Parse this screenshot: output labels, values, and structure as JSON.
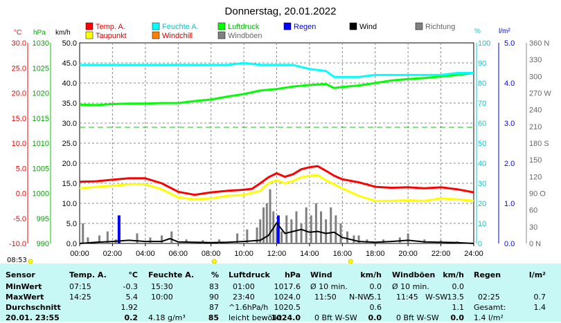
{
  "title": "Donnerstag, 20.01.2022",
  "legend": [
    {
      "label": "Temp. A.",
      "color": "#ff0000"
    },
    {
      "label": "Feuchte A.",
      "color": "#00ffff"
    },
    {
      "label": "Luftdruck",
      "color": "#00ff00"
    },
    {
      "label": "Regen",
      "color": "#0000ff"
    },
    {
      "label": "Wind",
      "color": "#000000"
    },
    {
      "label": "Richtung",
      "color": "#808080"
    },
    {
      "label": "Taupunkt",
      "color": "#ffff00"
    },
    {
      "label": "Windchill",
      "color": "#ff8000"
    },
    {
      "label": "Windböen",
      "color": "#808080"
    }
  ],
  "axis_units": {
    "temp": "°C",
    "pressure": "hPa",
    "wind": "km/h",
    "humidity": "%",
    "rain": "l/m²"
  },
  "current_time": "08:53",
  "summary": {
    "labels": {
      "sensor": "Sensor",
      "min": "MinWert",
      "max": "MaxWert",
      "avg": "Durchschnitt",
      "last": "20.01. 23:55"
    },
    "temp": {
      "header": "Temp. A.",
      "unit": "°C",
      "min_time": "07:15",
      "min": "-0.3",
      "max_time": "14:25",
      "max": "5.4",
      "avg": "1.92",
      "last": "0.2"
    },
    "humidity": {
      "header": "Feuchte A.",
      "unit": "%",
      "min_time": "15:30",
      "min": "83",
      "max_time": "10:00",
      "max": "90",
      "avg": "87",
      "last_extra": "4.18 g/m³",
      "last": "85"
    },
    "pressure": {
      "header": "Luftdruck",
      "unit": "hPa",
      "min_time": "01:00",
      "min": "1017.6",
      "max_time": "23:40",
      "max": "1024.0",
      "avg_extra": "^1.6hPa/h",
      "avg": "1020.5",
      "last_extra": "leicht bewölkt",
      "last": "1024.0"
    },
    "wind": {
      "header": "Wind",
      "unit": "km/h",
      "min_time": "Ø 10 min.",
      "min": "0.0",
      "max_time": "11:50",
      "max_dir": "N-NW",
      "max": "5.1",
      "avg": "0.6",
      "last_extra": "0 Bft W-SW",
      "last": "0.0"
    },
    "gusts": {
      "header": "Windböen",
      "unit": "km/h",
      "min_time": "Ø 10 min.",
      "min": "0.0",
      "max_time": "11:45",
      "max_dir": "W-SW",
      "max": "13.5",
      "avg": "1.1",
      "last_extra": "0 Bft W-SW",
      "last": "0.0"
    },
    "rain": {
      "header": "Regen",
      "unit": "l/m²",
      "max_time": "02:25",
      "max": "0.7",
      "avg_label": "Gesamt:",
      "avg": "1.4",
      "last": "1.4 l/m²"
    }
  },
  "chart_data": {
    "type": "line",
    "title": "Donnerstag, 20.01.2022",
    "x_ticks": [
      "00:00",
      "02:00",
      "04:00",
      "06:00",
      "08:00",
      "10:00",
      "12:00",
      "14:00",
      "16:00",
      "18:00",
      "20:00",
      "22:00",
      "24:00"
    ],
    "x_range_hours": [
      0,
      24
    ],
    "y_axes": {
      "temp_c": {
        "range": [
          -10,
          30
        ],
        "ticks": [
          "-10.0",
          "-5.0",
          "0.0",
          "5.0",
          "10.0",
          "15.0",
          "20.0",
          "25.0",
          "30.0"
        ],
        "color": "#ff0000"
      },
      "pressure_hpa": {
        "range": [
          990,
          1030
        ],
        "ticks": [
          "990",
          "995",
          "1000",
          "1005",
          "1010",
          "1015",
          "1020",
          "1025",
          "1030"
        ],
        "color": "#00cc00"
      },
      "wind_kmh": {
        "range": [
          0,
          50
        ],
        "ticks": [
          "0.0",
          "5.0",
          "10.0",
          "15.0",
          "20.0",
          "25.0",
          "30.0",
          "35.0",
          "40.0",
          "45.0",
          "50.0"
        ],
        "color": "#000000"
      },
      "humidity_pct": {
        "range": [
          0,
          100
        ],
        "ticks": [
          "0",
          "10",
          "20",
          "30",
          "40",
          "50",
          "60",
          "70",
          "80",
          "90",
          "100"
        ],
        "color": "#00cccc"
      },
      "rain_lm2": {
        "range": [
          0,
          5
        ],
        "ticks": [
          "0.0",
          "1.0",
          "2.0",
          "3.0",
          "4.0",
          "5.0"
        ],
        "color": "#0000ff"
      },
      "direction_deg": {
        "range": [
          0,
          360
        ],
        "ticks": [
          "0",
          "30",
          "60",
          "90",
          "120",
          "150",
          "180",
          "210",
          "240",
          "270",
          "300",
          "330",
          "360"
        ],
        "labels": {
          "0": "N",
          "90": "O",
          "180": "S",
          "270": "W",
          "360": "N"
        }
      }
    },
    "grid": true,
    "series": [
      {
        "name": "Temp. A.",
        "axis": "temp_c",
        "color": "#ff0000",
        "points": [
          [
            0,
            2.3
          ],
          [
            1,
            2.4
          ],
          [
            2,
            2.7
          ],
          [
            3,
            3.0
          ],
          [
            4,
            3.0
          ],
          [
            5,
            2.0
          ],
          [
            6,
            0.3
          ],
          [
            7,
            -0.3
          ],
          [
            8,
            0.2
          ],
          [
            9,
            0.5
          ],
          [
            10,
            0.7
          ],
          [
            10.5,
            0.9
          ],
          [
            11,
            2.0
          ],
          [
            11.5,
            3.2
          ],
          [
            12,
            4.0
          ],
          [
            12.5,
            3.3
          ],
          [
            13,
            3.8
          ],
          [
            13.5,
            4.8
          ],
          [
            14,
            5.2
          ],
          [
            14.5,
            5.4
          ],
          [
            15,
            4.5
          ],
          [
            15.5,
            3.5
          ],
          [
            16,
            2.8
          ],
          [
            17,
            2.2
          ],
          [
            18,
            1.3
          ],
          [
            19,
            1.1
          ],
          [
            20,
            1.2
          ],
          [
            21,
            1.0
          ],
          [
            22,
            1.2
          ],
          [
            23,
            0.8
          ],
          [
            24,
            0.2
          ]
        ]
      },
      {
        "name": "Taupunkt",
        "axis": "temp_c",
        "color": "#ffff00",
        "points": [
          [
            0,
            1.0
          ],
          [
            1,
            1.3
          ],
          [
            2,
            1.5
          ],
          [
            3,
            1.8
          ],
          [
            4,
            1.8
          ],
          [
            5,
            0.8
          ],
          [
            6,
            -0.8
          ],
          [
            7,
            -1.2
          ],
          [
            8,
            -1.0
          ],
          [
            9,
            -0.5
          ],
          [
            10,
            -0.3
          ],
          [
            11,
            0.5
          ],
          [
            11.5,
            2.0
          ],
          [
            12,
            2.6
          ],
          [
            12.5,
            2.0
          ],
          [
            13,
            2.5
          ],
          [
            13.5,
            3.2
          ],
          [
            14,
            3.5
          ],
          [
            14.5,
            3.6
          ],
          [
            15,
            2.6
          ],
          [
            16,
            1.0
          ],
          [
            17,
            -0.5
          ],
          [
            18,
            -1.5
          ],
          [
            19,
            -1.5
          ],
          [
            20,
            -1.4
          ],
          [
            21,
            -1.5
          ],
          [
            22,
            -1.0
          ],
          [
            23,
            -1.2
          ],
          [
            24,
            -1.5
          ]
        ]
      },
      {
        "name": "Feuchte A.",
        "axis": "humidity_pct",
        "color": "#00ffff",
        "points": [
          [
            0,
            89
          ],
          [
            2,
            89
          ],
          [
            4,
            89
          ],
          [
            6,
            89
          ],
          [
            8,
            89
          ],
          [
            9,
            89
          ],
          [
            10,
            90
          ],
          [
            11,
            89
          ],
          [
            12,
            89
          ],
          [
            13,
            89
          ],
          [
            13.5,
            88
          ],
          [
            14,
            87
          ],
          [
            15,
            86
          ],
          [
            15.5,
            83
          ],
          [
            16,
            83
          ],
          [
            17,
            83
          ],
          [
            18,
            84
          ],
          [
            19,
            84
          ],
          [
            20,
            84
          ],
          [
            21,
            84
          ],
          [
            22,
            84
          ],
          [
            23,
            85
          ],
          [
            24,
            85
          ]
        ]
      },
      {
        "name": "Luftdruck",
        "axis": "pressure_hpa",
        "color": "#00ff00",
        "points": [
          [
            0,
            1017.7
          ],
          [
            1,
            1017.6
          ],
          [
            2,
            1017.8
          ],
          [
            3,
            1017.9
          ],
          [
            4,
            1017.9
          ],
          [
            5,
            1018.0
          ],
          [
            6,
            1018.0
          ],
          [
            7,
            1018.4
          ],
          [
            8,
            1018.7
          ],
          [
            9,
            1019.3
          ],
          [
            10,
            1019.8
          ],
          [
            11,
            1020.5
          ],
          [
            12,
            1020.8
          ],
          [
            13,
            1021.3
          ],
          [
            14,
            1021.6
          ],
          [
            15,
            1021.8
          ],
          [
            15.5,
            1021.0
          ],
          [
            16,
            1021.2
          ],
          [
            17,
            1021.5
          ],
          [
            18,
            1022.0
          ],
          [
            19,
            1022.5
          ],
          [
            20,
            1022.8
          ],
          [
            21,
            1023.0
          ],
          [
            22,
            1023.3
          ],
          [
            23,
            1023.6
          ],
          [
            24,
            1024.0
          ]
        ]
      },
      {
        "name": "Wind",
        "axis": "wind_kmh",
        "color": "#000000",
        "points": [
          [
            0,
            0
          ],
          [
            1,
            0.3
          ],
          [
            2,
            0.5
          ],
          [
            3,
            0.8
          ],
          [
            4,
            0.5
          ],
          [
            5,
            0.5
          ],
          [
            5.5,
            1.2
          ],
          [
            6,
            0.4
          ],
          [
            7,
            0.3
          ],
          [
            8,
            0.2
          ],
          [
            9,
            0.3
          ],
          [
            10,
            0.5
          ],
          [
            11,
            0.8
          ],
          [
            11.5,
            2.0
          ],
          [
            12,
            5.1
          ],
          [
            12.5,
            2.5
          ],
          [
            13,
            3.0
          ],
          [
            13.5,
            3.5
          ],
          [
            14,
            2.8
          ],
          [
            14.5,
            3.0
          ],
          [
            15,
            2.5
          ],
          [
            15.5,
            2.8
          ],
          [
            16,
            1.5
          ],
          [
            17,
            0.5
          ],
          [
            18,
            0.3
          ],
          [
            19,
            0.5
          ],
          [
            20,
            0.8
          ],
          [
            21,
            0.4
          ],
          [
            22,
            0.3
          ],
          [
            23,
            0.2
          ],
          [
            24,
            0.0
          ]
        ]
      },
      {
        "name": "Windböen",
        "axis": "wind_kmh",
        "color": "#808080",
        "type": "bars",
        "points": [
          [
            0.2,
            5.0
          ],
          [
            0.5,
            1.5
          ],
          [
            1.2,
            2.0
          ],
          [
            1.7,
            3.0
          ],
          [
            2.2,
            1.0
          ],
          [
            3.5,
            2.5
          ],
          [
            4.3,
            1.5
          ],
          [
            5.0,
            2.0
          ],
          [
            5.6,
            3.0
          ],
          [
            6.5,
            1.0
          ],
          [
            7.5,
            0.8
          ],
          [
            8.5,
            1.0
          ],
          [
            9.6,
            2.5
          ],
          [
            10.2,
            3.5
          ],
          [
            10.8,
            4.0
          ],
          [
            11.0,
            6.0
          ],
          [
            11.2,
            9.0
          ],
          [
            11.4,
            10.0
          ],
          [
            11.6,
            13.5
          ],
          [
            11.8,
            8.0
          ],
          [
            12.0,
            4.0
          ],
          [
            12.3,
            3.0
          ],
          [
            12.6,
            7.0
          ],
          [
            12.9,
            6.0
          ],
          [
            13.2,
            8.0
          ],
          [
            13.5,
            5.0
          ],
          [
            13.8,
            9.0
          ],
          [
            14.1,
            7.0
          ],
          [
            14.4,
            10.0
          ],
          [
            14.7,
            8.0
          ],
          [
            15.0,
            6.0
          ],
          [
            15.3,
            9.0
          ],
          [
            15.6,
            7.0
          ],
          [
            15.9,
            5.0
          ],
          [
            16.3,
            3.0
          ],
          [
            16.7,
            2.0
          ],
          [
            17.0,
            2.0
          ],
          [
            17.5,
            1.0
          ],
          [
            18.5,
            1.0
          ],
          [
            19.5,
            1.5
          ],
          [
            20.0,
            2.5
          ],
          [
            21.0,
            1.0
          ],
          [
            22.0,
            0.8
          ],
          [
            23.0,
            0.5
          ]
        ]
      },
      {
        "name": "Regen",
        "axis": "rain_lm2",
        "color": "#0000ff",
        "type": "bars",
        "points": [
          [
            2.4,
            0.7
          ],
          [
            12.1,
            0.7
          ]
        ]
      }
    ]
  }
}
